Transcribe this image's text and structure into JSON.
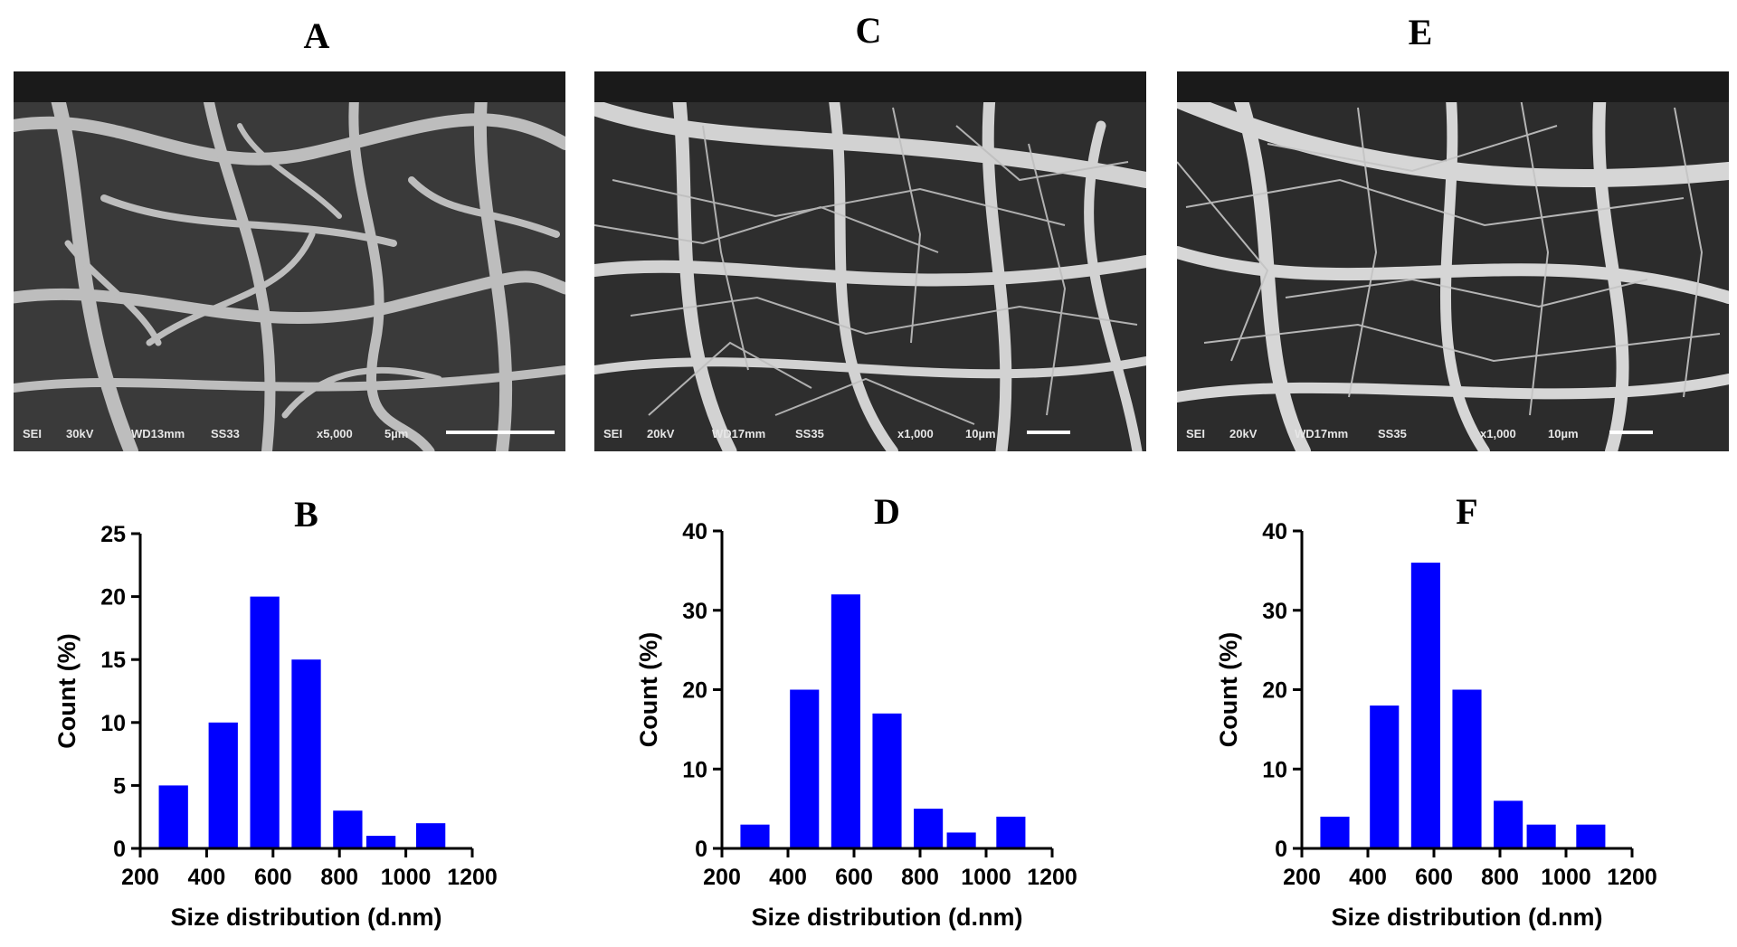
{
  "panels": {
    "a": "A",
    "b": "B",
    "c": "C",
    "d": "D",
    "e": "E",
    "f": "F"
  },
  "sem_images": [
    {
      "mode": "SEI",
      "voltage": "30kV",
      "wd": "WD13mm",
      "ss": "SS33",
      "mag": "x5,000",
      "scale": "5µm"
    },
    {
      "mode": "SEI",
      "voltage": "20kV",
      "wd": "WD17mm",
      "ss": "SS35",
      "mag": "x1,000",
      "scale": "10µm"
    },
    {
      "mode": "SEI",
      "voltage": "20kV",
      "wd": "WD17mm",
      "ss": "SS35",
      "mag": "x1,000",
      "scale": "10µm"
    }
  ],
  "colors": {
    "bar": "#0000ff",
    "axis": "#000000",
    "sem_background": "#333333",
    "fiber": "#c8c8c8"
  },
  "chart_data": [
    {
      "panel": "B",
      "type": "bar",
      "x": [
        300,
        450,
        575,
        700,
        825,
        925,
        1075
      ],
      "values": [
        5,
        10,
        20,
        15,
        3,
        1,
        2
      ],
      "xlim": [
        200,
        1200
      ],
      "ylim": [
        0,
        25
      ],
      "xticks": [
        200,
        400,
        600,
        800,
        1000,
        1200
      ],
      "yticks": [
        0,
        5,
        10,
        15,
        20,
        25
      ],
      "xlabel": "Size distribution (d.nm)",
      "ylabel": "Count (%)",
      "title": "B"
    },
    {
      "panel": "D",
      "type": "bar",
      "x": [
        300,
        450,
        575,
        700,
        825,
        925,
        1075
      ],
      "values": [
        3,
        20,
        32,
        17,
        5,
        2,
        4
      ],
      "xlim": [
        200,
        1200
      ],
      "ylim": [
        0,
        40
      ],
      "xticks": [
        200,
        400,
        600,
        800,
        1000,
        1200
      ],
      "yticks": [
        0,
        10,
        20,
        30,
        40
      ],
      "xlabel": "Size distribution (d.nm)",
      "ylabel": "Count (%)",
      "title": "D"
    },
    {
      "panel": "F",
      "type": "bar",
      "x": [
        300,
        450,
        575,
        700,
        825,
        925,
        1075
      ],
      "values": [
        4,
        18,
        36,
        20,
        6,
        3,
        3
      ],
      "xlim": [
        200,
        1200
      ],
      "ylim": [
        0,
        40
      ],
      "xticks": [
        200,
        400,
        600,
        800,
        1000,
        1200
      ],
      "yticks": [
        0,
        10,
        20,
        30,
        40
      ],
      "xlabel": "Size distribution (d.nm)",
      "ylabel": "Count (%)",
      "title": "F"
    }
  ]
}
